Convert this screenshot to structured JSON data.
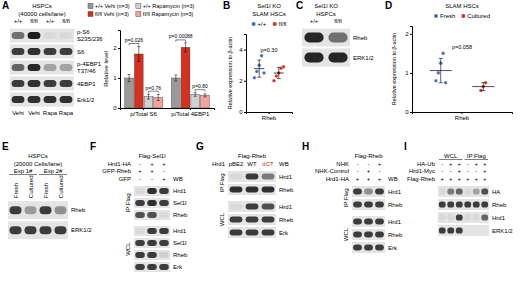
{
  "chart_data": [
    {
      "panel": "A",
      "type": "bar",
      "categories": [
        "p/Total S6",
        "p/Total 4EBP1"
      ],
      "y_label": "Relative level",
      "ylim": [
        0,
        2.6
      ],
      "yticks": [
        0,
        1,
        2
      ],
      "legend": "top",
      "series": [
        {
          "name": "+/+ Vehi (n=3)",
          "color": "#9a9a9a",
          "values": [
            1,
            1
          ],
          "errors": [
            0.12,
            0.1
          ]
        },
        {
          "name": "fl/fl Vehi (n=3)",
          "color": "#d7301f",
          "values": [
            1.8,
            2.02
          ],
          "errors": [
            0.25,
            0.15
          ]
        },
        {
          "name": "+/+ Rapamycin (n=3)",
          "color": "#d0d0d0",
          "values": [
            0.38,
            0.45
          ],
          "errors": [
            0.08,
            0.06
          ]
        },
        {
          "name": "fl/fl Rapamycin (n=3)",
          "color": "#f2a49b",
          "values": [
            0.35,
            0.42
          ],
          "errors": [
            0.1,
            0.05
          ]
        }
      ],
      "annotations": [
        {
          "text": "p=0.026",
          "category": 0,
          "series": [
            0,
            1
          ]
        },
        {
          "text": "p=0.76",
          "category": 0,
          "series": [
            2,
            3
          ]
        },
        {
          "text": "p=0.00088",
          "category": 1,
          "series": [
            0,
            1
          ]
        },
        {
          "text": "p=0.80",
          "category": 1,
          "series": [
            2,
            3
          ]
        }
      ]
    },
    {
      "panel": "B",
      "type": "dot",
      "title": [
        "Sel1l KO",
        "SLAM HSCs"
      ],
      "x_label": "Rheb",
      "y_label": "Relative expression to β-actin",
      "ylim": [
        0,
        5
      ],
      "yticks": [
        0,
        2,
        4
      ],
      "legend": "top",
      "series": [
        {
          "name": "+/+",
          "color": "#3b6fc9",
          "values": [
            2.2,
            2.6,
            3.0,
            3.6,
            2.5
          ],
          "mean": 2.78,
          "sd": 0.55
        },
        {
          "name": "fl/fl",
          "color": "#d7301f",
          "values": [
            2.0,
            2.3,
            2.5,
            2.8,
            2.9
          ],
          "mean": 2.5,
          "sd": 0.36
        }
      ],
      "annotations": [
        {
          "text": "p=0.30"
        }
      ]
    },
    {
      "panel": "D",
      "type": "dot",
      "title": [
        "SLAM HSCs"
      ],
      "x_label": "Rheb",
      "y_label": "Relative expression to β-actin",
      "ylim": [
        0,
        2.2
      ],
      "yticks": [
        0,
        1,
        2
      ],
      "legend": "top",
      "series": [
        {
          "name": "Fresh",
          "color": "#3b6fc9",
          "values": [
            0.8,
            1.0,
            1.25,
            1.5,
            0.75
          ],
          "mean": 1.06,
          "sd": 0.31
        },
        {
          "name": "Cultured",
          "color": "#d7301f",
          "values": [
            0.55,
            0.65,
            0.75
          ],
          "mean": 0.65,
          "sd": 0.1
        }
      ],
      "annotations": [
        {
          "text": "p=0.058"
        }
      ]
    }
  ],
  "blots": [
    {
      "title": [
        "HSPCs",
        "(40000 cells/lane)"
      ],
      "lane_labels": [
        "+/+",
        "fl/fl",
        "+/+",
        "fl/fl"
      ],
      "lane_footer": [
        "Vehi",
        "Vehi",
        "Rapa",
        "Rapa"
      ],
      "sections": [
        {
          "rows": [
            {
              "label": [
                "p-S6",
                "S235/236"
              ],
              "bands": [
                0.55,
                0.95,
                0.05,
                0.05
              ]
            },
            {
              "label": [
                "S6"
              ],
              "bands": [
                0.8,
                0.85,
                0.8,
                0.8
              ]
            },
            {
              "label": [
                "p-4EBP1",
                "T37/46"
              ],
              "bands": [
                0.6,
                0.9,
                0.3,
                0.3
              ]
            },
            {
              "label": [
                "4EBP1"
              ],
              "bands": [
                0.8,
                0.85,
                0.8,
                0.8
              ]
            },
            {
              "label": [
                "Erk1/2"
              ],
              "bands": [
                0.85,
                0.85,
                0.85,
                0.85
              ]
            }
          ]
        }
      ]
    },
    {
      "panel": "C",
      "title": [
        "Sel1l KO",
        "HSPCs"
      ],
      "lane_labels": [
        "+/+",
        "fl/fl"
      ],
      "sections": [
        {
          "rows": [
            {
              "label": [
                "Rheb"
              ],
              "bands": [
                0.9,
                0.55
              ]
            },
            {
              "label": [
                "ERK1/2"
              ],
              "bands": [
                0.9,
                0.9
              ]
            }
          ]
        }
      ]
    },
    {
      "panel": "E",
      "title": [
        "HSPCs",
        "(20000 Cells/lane)"
      ],
      "groups": [
        {
          "label": "Exp 1#",
          "lanes": [
            0,
            1
          ]
        },
        {
          "label": "Exp 2#",
          "lanes": [
            2,
            3
          ]
        }
      ],
      "lane_labels": [
        "Fresh",
        "Cultured",
        "Fresh",
        "Cultured"
      ],
      "sections": [
        {
          "rows": [
            {
              "label": [
                "Rheb"
              ],
              "bands": [
                0.8,
                0.35,
                0.8,
                0.4
              ]
            },
            {
              "label": [
                "ERK1/2"
              ],
              "bands": [
                0.8,
                0.8,
                0.8,
                0.8
              ]
            }
          ]
        }
      ]
    },
    {
      "panel": "F",
      "title": [
        "Flag-Sel1l"
      ],
      "conditions": [
        {
          "label": "Hrd1-HA",
          "marks": [
            "-",
            "+",
            "+"
          ]
        },
        {
          "label": "GFP-Rheb",
          "marks": [
            "+",
            "+",
            "-"
          ]
        },
        {
          "label": "GFP",
          "marks": [
            "-",
            "-",
            "+"
          ]
        }
      ],
      "header_right": "WB",
      "sections": [
        {
          "label": "IP:Flag",
          "rows": [
            {
              "label": [
                "Hrd1"
              ],
              "bands": [
                0.05,
                0.85,
                0.8
              ]
            },
            {
              "label": [
                "Sel1l"
              ],
              "bands": [
                0.8,
                0.85,
                0.8
              ]
            },
            {
              "label": [
                "Rheb"
              ],
              "bands": [
                0.7,
                0.7,
                0.05
              ]
            }
          ]
        },
        {
          "label": "WCL",
          "rows": [
            {
              "label": [
                "Hrd1"
              ],
              "bands": [
                0.05,
                0.8,
                0.8
              ]
            },
            {
              "label": [
                "Sel1l"
              ],
              "bands": [
                0.8,
                0.8,
                0.8
              ]
            },
            {
              "label": [
                "Rheb"
              ],
              "bands": [
                0.8,
                0.8,
                0.1
              ]
            },
            {
              "label": [
                "Erk"
              ],
              "bands": [
                0.8,
                0.8,
                0.8
              ]
            }
          ]
        }
      ]
    },
    {
      "panel": "G",
      "title": [
        "Flag-Rheb"
      ],
      "conditions": [
        {
          "label": "Hrd1",
          "marks": [
            "pBE2",
            "WT",
            "dCT"
          ],
          "colors": [
            "#000000",
            "#000000",
            "#d7301f"
          ]
        }
      ],
      "header_right": "WB",
      "sections": [
        {
          "label": "IP:Flag",
          "rows": [
            {
              "label": [
                "Hrd1"
              ],
              "bands": [
                0.05,
                0.8,
                0.5
              ]
            },
            {
              "label": [
                "Rheb"
              ],
              "bands": [
                0.85,
                0.85,
                0.85
              ]
            }
          ]
        },
        {
          "label": "WCL",
          "rows": [
            {
              "label": [
                "Hrd1"
              ],
              "bands": [
                0.05,
                0.8,
                0.7
              ]
            },
            {
              "label": [
                "Rheb"
              ],
              "bands": [
                0.8,
                0.8,
                0.8
              ]
            },
            {
              "label": [
                "Erk"
              ],
              "bands": [
                0.8,
                0.8,
                0.8
              ]
            }
          ]
        }
      ]
    },
    {
      "panel": "H",
      "title": [
        "Flag-Rheb"
      ],
      "conditions": [
        {
          "label": "NHK",
          "marks": [
            "-",
            "-",
            "+"
          ]
        },
        {
          "label": "NHK-Control",
          "marks": [
            "-",
            "+",
            "-"
          ]
        },
        {
          "label": "Hrd1-HA",
          "marks": [
            "+",
            "+",
            "+"
          ]
        }
      ],
      "header_right": "WB",
      "sections": [
        {
          "label": "IP:Flag",
          "rows": [
            {
              "label": [
                "Hrd1"
              ],
              "bands": [
                0.8,
                0.4,
                0.8
              ]
            },
            {
              "label": [
                "Rheb"
              ],
              "bands": [
                0.8,
                0.8,
                0.8
              ]
            }
          ]
        },
        {
          "label": "WCL",
          "rows": [
            {
              "label": [
                "Hrd1"
              ],
              "bands": [
                0.8,
                0.8,
                0.8
              ]
            },
            {
              "label": [
                "Rheb"
              ],
              "bands": [
                0.8,
                0.8,
                0.8
              ]
            },
            {
              "label": [
                "Erk"
              ],
              "bands": [
                0.8,
                0.8,
                0.8
              ]
            }
          ]
        }
      ]
    },
    {
      "panel": "I",
      "groups": [
        {
          "label": "WCL",
          "lanes": [
            0,
            1,
            2
          ]
        },
        {
          "label": "IP:Flag",
          "lanes": [
            3,
            4,
            5
          ]
        }
      ],
      "conditions": [
        {
          "label": "HA-Ub",
          "marks": [
            "-",
            "+",
            "+",
            "-",
            "+",
            "+"
          ]
        },
        {
          "label": "Hrd1-Myc",
          "marks": [
            "-",
            "-",
            "+",
            "-",
            "-",
            "+"
          ]
        },
        {
          "label": "Flag-Rheb",
          "marks": [
            "+",
            "+",
            "+",
            "+",
            "+",
            "+"
          ]
        }
      ],
      "sections": [
        {
          "rows": [
            {
              "label": [
                "HA"
              ],
              "bands": [
                0.05,
                0.5,
                0.6,
                0.05,
                0.3,
                0.7
              ]
            },
            {
              "label": [
                "Rheb"
              ],
              "bands": [
                0.8,
                0.8,
                0.8,
                0.8,
                0.8,
                0.8
              ]
            },
            {
              "label": [
                "Hrd1"
              ],
              "bands": [
                0.05,
                0.05,
                0.8,
                0.05,
                0.05,
                0.6
              ]
            },
            {
              "label": [
                "ERK1/2"
              ],
              "bands": [
                0.8,
                0.8,
                0.8,
                0,
                0,
                0
              ]
            }
          ]
        }
      ]
    }
  ]
}
